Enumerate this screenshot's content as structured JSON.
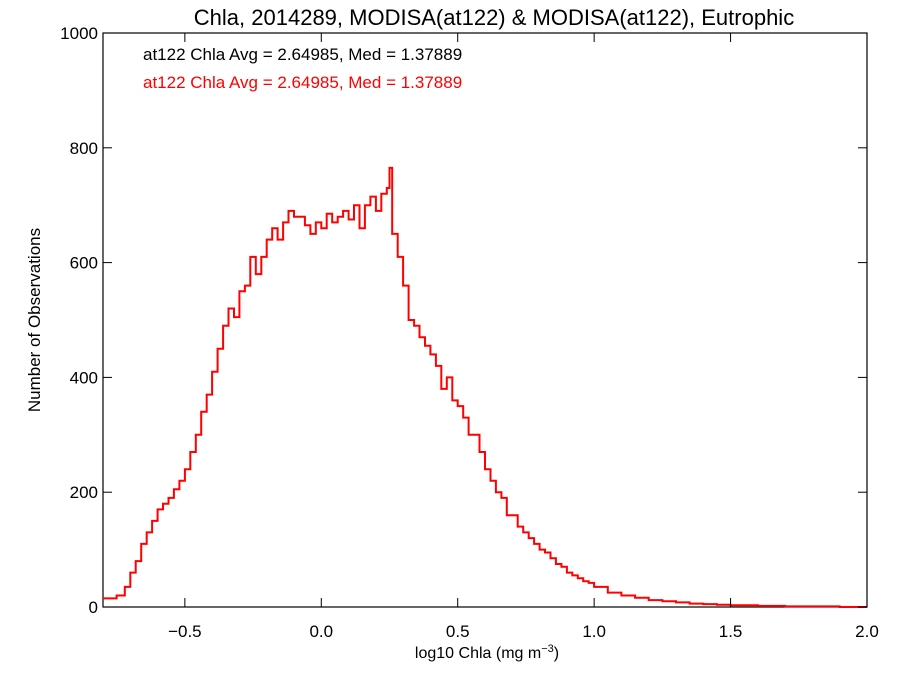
{
  "chart_data": {
    "type": "line",
    "title": "Chla, 2014289, MODISA(at122) & MODISA(at122), Eutrophic",
    "xlabel_main": "log10 Chla (mg m",
    "xlabel_sup": "−3",
    "xlabel_end": ")",
    "ylabel": "Number of Observations",
    "xlim": [
      -0.8,
      2.0
    ],
    "ylim": [
      0,
      1000
    ],
    "x_ticks": [
      -0.5,
      0.0,
      0.5,
      1.0,
      1.5,
      2.0
    ],
    "x_tick_labels": [
      "−0.5",
      "0.0",
      "0.5",
      "1.0",
      "1.5",
      "2.0"
    ],
    "y_ticks": [
      0,
      200,
      400,
      600,
      800,
      1000
    ],
    "y_tick_labels": [
      "0",
      "200",
      "400",
      "600",
      "800",
      "1000"
    ],
    "annotations": [
      {
        "text": "at122 Chla Avg = 2.64985, Med = 1.37889",
        "color": "#000000"
      },
      {
        "text": "at122 Chla Avg = 2.64985, Med = 1.37889",
        "color": "#ff0000"
      }
    ],
    "series": [
      {
        "color": "#ff0000",
        "style": "step",
        "x": [
          -0.8,
          -0.75,
          -0.72,
          -0.7,
          -0.68,
          -0.66,
          -0.64,
          -0.62,
          -0.6,
          -0.58,
          -0.56,
          -0.54,
          -0.52,
          -0.5,
          -0.48,
          -0.46,
          -0.44,
          -0.42,
          -0.4,
          -0.38,
          -0.36,
          -0.34,
          -0.32,
          -0.3,
          -0.28,
          -0.26,
          -0.24,
          -0.22,
          -0.2,
          -0.18,
          -0.16,
          -0.14,
          -0.12,
          -0.1,
          -0.08,
          -0.06,
          -0.04,
          -0.02,
          0.0,
          0.02,
          0.04,
          0.06,
          0.08,
          0.1,
          0.12,
          0.14,
          0.16,
          0.18,
          0.2,
          0.22,
          0.24,
          0.25,
          0.26,
          0.28,
          0.3,
          0.32,
          0.34,
          0.36,
          0.38,
          0.4,
          0.42,
          0.44,
          0.46,
          0.48,
          0.5,
          0.52,
          0.54,
          0.56,
          0.58,
          0.6,
          0.62,
          0.64,
          0.66,
          0.68,
          0.7,
          0.72,
          0.74,
          0.76,
          0.78,
          0.8,
          0.82,
          0.84,
          0.86,
          0.88,
          0.9,
          0.92,
          0.94,
          0.96,
          0.98,
          1.0,
          1.05,
          1.1,
          1.15,
          1.2,
          1.25,
          1.3,
          1.35,
          1.4,
          1.45,
          1.5,
          1.55,
          1.6,
          1.65,
          1.7,
          1.75,
          1.8,
          1.85,
          1.9,
          1.95,
          2.0
        ],
        "y": [
          15,
          20,
          35,
          60,
          80,
          110,
          130,
          150,
          170,
          180,
          190,
          205,
          220,
          240,
          270,
          300,
          340,
          370,
          410,
          450,
          490,
          520,
          505,
          550,
          560,
          610,
          580,
          610,
          640,
          660,
          640,
          670,
          690,
          680,
          680,
          665,
          650,
          670,
          660,
          685,
          670,
          680,
          690,
          675,
          700,
          660,
          700,
          715,
          690,
          720,
          730,
          765,
          650,
          610,
          560,
          500,
          490,
          470,
          455,
          440,
          420,
          380,
          400,
          360,
          350,
          330,
          300,
          300,
          270,
          240,
          220,
          200,
          190,
          160,
          160,
          140,
          130,
          120,
          110,
          100,
          95,
          85,
          75,
          70,
          60,
          55,
          50,
          45,
          42,
          35,
          25,
          20,
          16,
          12,
          10,
          8,
          6,
          5,
          4,
          3,
          3,
          2,
          2,
          1,
          1,
          1,
          1,
          0,
          0,
          0
        ]
      }
    ]
  }
}
